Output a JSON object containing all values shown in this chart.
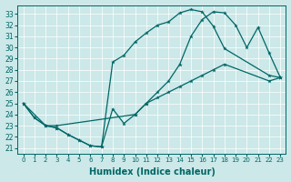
{
  "xlabel": "Humidex (Indice chaleur)",
  "bg_color": "#cce8e8",
  "line_color": "#006666",
  "xlim": [
    -0.5,
    23.5
  ],
  "ylim": [
    20.5,
    33.8
  ],
  "xticks": [
    0,
    1,
    2,
    3,
    4,
    5,
    6,
    7,
    8,
    9,
    10,
    11,
    12,
    13,
    14,
    15,
    16,
    17,
    18,
    19,
    20,
    21,
    22,
    23
  ],
  "yticks": [
    21,
    22,
    23,
    24,
    25,
    26,
    27,
    28,
    29,
    30,
    31,
    32,
    33
  ],
  "line1": {
    "x": [
      0,
      1,
      2,
      3,
      4,
      5,
      6,
      7,
      8,
      9,
      10,
      11,
      12,
      13,
      14,
      15,
      16,
      17,
      18,
      19,
      20,
      21,
      22,
      23
    ],
    "y": [
      25,
      23.7,
      23,
      22.8,
      22.2,
      21.7,
      21.2,
      21.1,
      24.5,
      23.2,
      24,
      25,
      26,
      27,
      28.5,
      31,
      32.5,
      33.2,
      33.1,
      32,
      30,
      31.8,
      29.5,
      27.3
    ]
  },
  "line2": {
    "x": [
      0,
      1,
      2,
      3,
      4,
      5,
      6,
      7,
      8,
      9,
      10,
      11,
      12,
      13,
      14,
      15,
      16,
      17,
      18,
      22,
      23
    ],
    "y": [
      25,
      23.7,
      23,
      22.8,
      22.2,
      21.7,
      21.2,
      21.1,
      28.7,
      29.3,
      30.5,
      31.3,
      32,
      32.3,
      33.1,
      33.4,
      33.2,
      31.9,
      29.9,
      27.5,
      27.3
    ]
  },
  "line3": {
    "x": [
      0,
      2,
      3,
      10,
      11,
      12,
      13,
      14,
      15,
      16,
      17,
      18,
      22,
      23
    ],
    "y": [
      25,
      23,
      23,
      24,
      25,
      25.5,
      26,
      26.5,
      27,
      27.5,
      28,
      28.5,
      27,
      27.3
    ]
  }
}
